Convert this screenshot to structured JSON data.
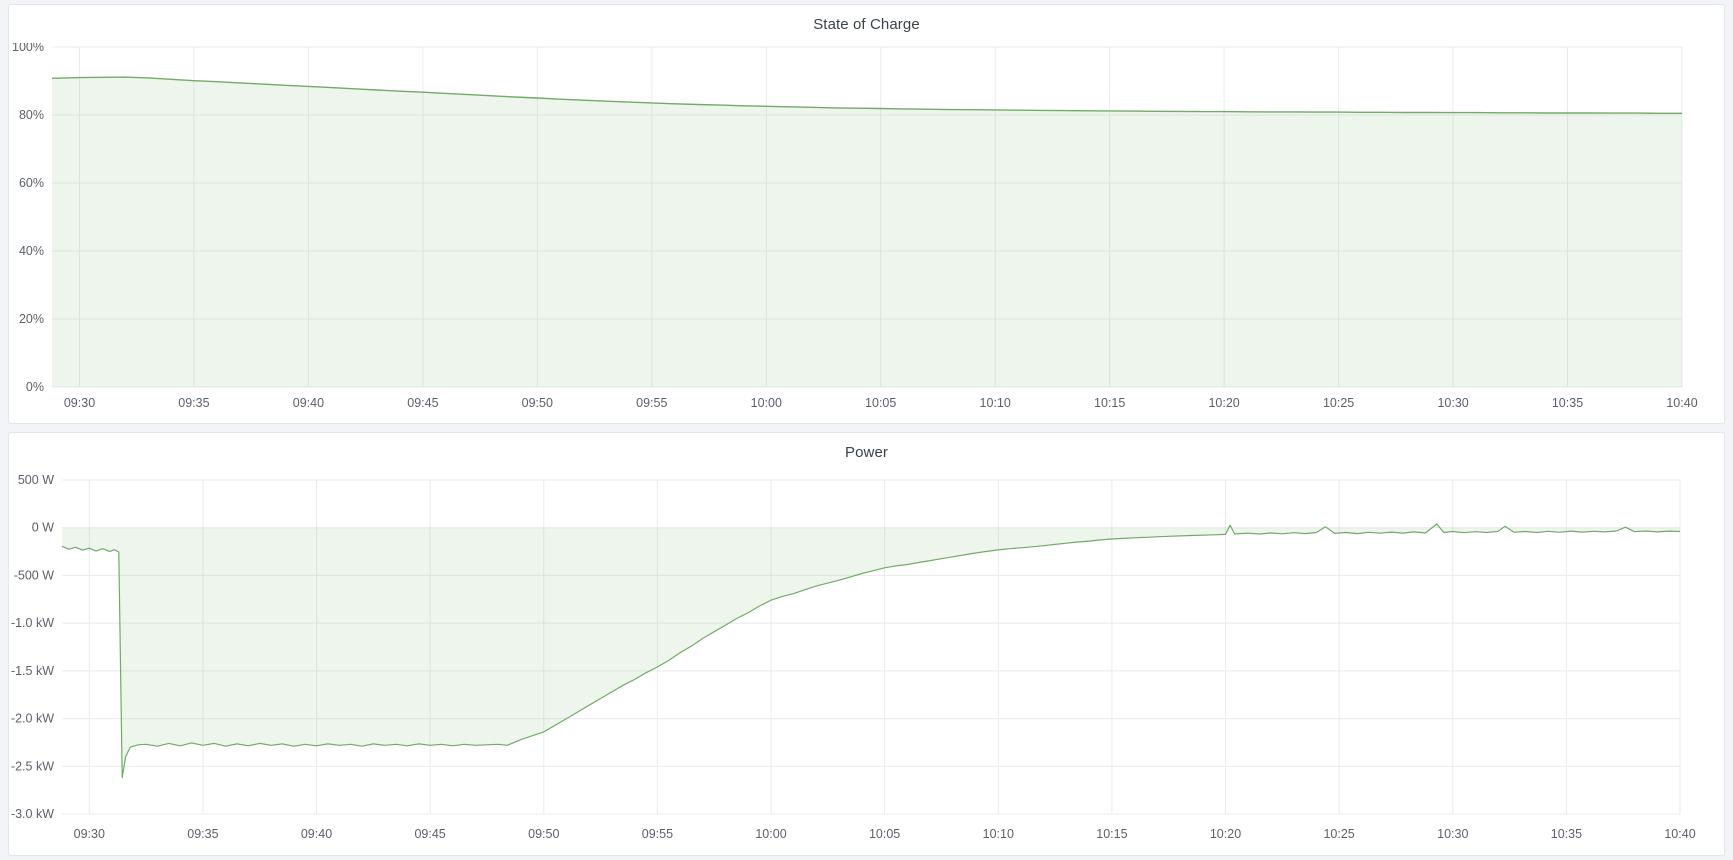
{
  "panels": [
    {
      "title": "State of Charge"
    },
    {
      "title": "Power"
    }
  ],
  "colors": {
    "page_background": "#f3f4f8",
    "panel_background": "#ffffff",
    "panel_border": "#e3e6ec",
    "title_text": "#3a424b",
    "axis_text": "#5b6169",
    "grid": "#e9ebec",
    "series_line_green": "#72ab68",
    "series_fill_green": "rgba(114,171,104,0.12)"
  },
  "chart_data": [
    {
      "type": "area",
      "title": "State of Charge",
      "xlabel": "",
      "ylabel": "",
      "x_unit": "time (HH:MM)",
      "y_unit": "percent",
      "xlim_minutes": [
        -1.2,
        70
      ],
      "ylim": [
        0,
        100
      ],
      "grid": true,
      "legend": "none",
      "fill_to_zero": true,
      "line_color": "#72ab68",
      "fill_color": "rgba(114,171,104,0.12)",
      "line_width": 1.4,
      "noise": 0,
      "x_ticks": [
        {
          "t": 0,
          "label": "09:30"
        },
        {
          "t": 5,
          "label": "09:35"
        },
        {
          "t": 10,
          "label": "09:40"
        },
        {
          "t": 15,
          "label": "09:45"
        },
        {
          "t": 20,
          "label": "09:50"
        },
        {
          "t": 25,
          "label": "09:55"
        },
        {
          "t": 30,
          "label": "10:00"
        },
        {
          "t": 35,
          "label": "10:05"
        },
        {
          "t": 40,
          "label": "10:10"
        },
        {
          "t": 45,
          "label": "10:15"
        },
        {
          "t": 50,
          "label": "10:20"
        },
        {
          "t": 55,
          "label": "10:25"
        },
        {
          "t": 60,
          "label": "10:30"
        },
        {
          "t": 65,
          "label": "10:35"
        },
        {
          "t": 70,
          "label": "10:40"
        }
      ],
      "y_ticks": [
        {
          "value": 100,
          "label": "100%"
        },
        {
          "value": 80,
          "label": "80%"
        },
        {
          "value": 60,
          "label": "60%"
        },
        {
          "value": 40,
          "label": "40%"
        },
        {
          "value": 20,
          "label": "20%"
        },
        {
          "value": 0,
          "label": "0%"
        }
      ],
      "points": [
        [
          -1.2,
          90.8
        ],
        [
          0,
          91.0
        ],
        [
          1,
          91.1
        ],
        [
          2,
          91.15
        ],
        [
          3,
          90.9
        ],
        [
          4,
          90.5
        ],
        [
          5,
          90.1
        ],
        [
          6,
          89.8
        ],
        [
          7,
          89.45
        ],
        [
          8,
          89.1
        ],
        [
          9,
          88.75
        ],
        [
          10,
          88.4
        ],
        [
          11,
          88.05
        ],
        [
          12,
          87.7
        ],
        [
          13,
          87.35
        ],
        [
          14,
          87.0
        ],
        [
          15,
          86.7
        ],
        [
          16,
          86.35
        ],
        [
          17,
          86.0
        ],
        [
          18,
          85.65
        ],
        [
          19,
          85.3
        ],
        [
          20,
          85.0
        ],
        [
          21,
          84.65
        ],
        [
          22,
          84.35
        ],
        [
          23,
          84.05
        ],
        [
          24,
          83.8
        ],
        [
          25,
          83.55
        ],
        [
          26,
          83.3
        ],
        [
          27,
          83.1
        ],
        [
          28,
          82.9
        ],
        [
          29,
          82.7
        ],
        [
          30,
          82.55
        ],
        [
          31,
          82.4
        ],
        [
          32,
          82.25
        ],
        [
          33,
          82.1
        ],
        [
          34,
          82.0
        ],
        [
          35,
          81.9
        ],
        [
          36,
          81.8
        ],
        [
          37,
          81.7
        ],
        [
          38,
          81.6
        ],
        [
          39,
          81.55
        ],
        [
          40,
          81.5
        ],
        [
          41,
          81.4
        ],
        [
          42,
          81.35
        ],
        [
          43,
          81.3
        ],
        [
          44,
          81.25
        ],
        [
          45,
          81.2
        ],
        [
          46,
          81.15
        ],
        [
          47,
          81.1
        ],
        [
          48,
          81.05
        ],
        [
          49,
          81.0
        ],
        [
          50,
          81.0
        ],
        [
          51,
          80.95
        ],
        [
          52,
          80.9
        ],
        [
          53,
          80.9
        ],
        [
          54,
          80.85
        ],
        [
          55,
          80.85
        ],
        [
          56,
          80.8
        ],
        [
          57,
          80.8
        ],
        [
          58,
          80.75
        ],
        [
          59,
          80.75
        ],
        [
          60,
          80.7
        ],
        [
          61,
          80.7
        ],
        [
          62,
          80.65
        ],
        [
          63,
          80.65
        ],
        [
          64,
          80.6
        ],
        [
          65,
          80.6
        ],
        [
          66,
          80.6
        ],
        [
          67,
          80.55
        ],
        [
          68,
          80.55
        ],
        [
          69,
          80.5
        ],
        [
          70,
          80.5
        ]
      ]
    },
    {
      "type": "area",
      "title": "Power",
      "xlabel": "",
      "ylabel": "",
      "x_unit": "time (HH:MM)",
      "y_unit": "watts",
      "xlim_minutes": [
        -1.2,
        70
      ],
      "ylim": [
        -3000,
        500
      ],
      "grid": true,
      "legend": "none",
      "fill_to_zero": true,
      "line_color": "#72ab68",
      "fill_color": "rgba(114,171,104,0.12)",
      "line_width": 1.2,
      "noise": 16,
      "x_ticks": [
        {
          "t": 0,
          "label": "09:30"
        },
        {
          "t": 5,
          "label": "09:35"
        },
        {
          "t": 10,
          "label": "09:40"
        },
        {
          "t": 15,
          "label": "09:45"
        },
        {
          "t": 20,
          "label": "09:50"
        },
        {
          "t": 25,
          "label": "09:55"
        },
        {
          "t": 30,
          "label": "10:00"
        },
        {
          "t": 35,
          "label": "10:05"
        },
        {
          "t": 40,
          "label": "10:10"
        },
        {
          "t": 45,
          "label": "10:15"
        },
        {
          "t": 50,
          "label": "10:20"
        },
        {
          "t": 55,
          "label": "10:25"
        },
        {
          "t": 60,
          "label": "10:30"
        },
        {
          "t": 65,
          "label": "10:35"
        },
        {
          "t": 70,
          "label": "10:40"
        }
      ],
      "y_ticks": [
        {
          "value": 500,
          "label": "500 W"
        },
        {
          "value": 0,
          "label": "0 W"
        },
        {
          "value": -500,
          "label": "-500 W"
        },
        {
          "value": -1000,
          "label": "-1.0 kW"
        },
        {
          "value": -1500,
          "label": "-1.5 kW"
        },
        {
          "value": -2000,
          "label": "-2.0 kW"
        },
        {
          "value": -2500,
          "label": "-2.5 kW"
        },
        {
          "value": -3000,
          "label": "-3.0 kW"
        }
      ],
      "points": [
        [
          -1.2,
          -195
        ],
        [
          -0.9,
          -225
        ],
        [
          -0.6,
          -205
        ],
        [
          -0.3,
          -235
        ],
        [
          0,
          -215
        ],
        [
          0.3,
          -245
        ],
        [
          0.6,
          -220
        ],
        [
          0.9,
          -250
        ],
        [
          1.1,
          -230
        ],
        [
          1.3,
          -255
        ],
        [
          1.45,
          -2620
        ],
        [
          1.6,
          -2400
        ],
        [
          1.8,
          -2300
        ],
        [
          2.5,
          -2270
        ],
        [
          3,
          -2290
        ],
        [
          3.5,
          -2260
        ],
        [
          4,
          -2285
        ],
        [
          4.5,
          -2255
        ],
        [
          5,
          -2280
        ],
        [
          5.5,
          -2260
        ],
        [
          6,
          -2290
        ],
        [
          6.5,
          -2265
        ],
        [
          7,
          -2285
        ],
        [
          7.5,
          -2260
        ],
        [
          8,
          -2280
        ],
        [
          8.5,
          -2265
        ],
        [
          9,
          -2290
        ],
        [
          9.5,
          -2270
        ],
        [
          10,
          -2285
        ],
        [
          10.5,
          -2265
        ],
        [
          11,
          -2280
        ],
        [
          11.5,
          -2270
        ],
        [
          12,
          -2290
        ],
        [
          12.5,
          -2265
        ],
        [
          13,
          -2280
        ],
        [
          13.5,
          -2270
        ],
        [
          14,
          -2285
        ],
        [
          14.5,
          -2265
        ],
        [
          15,
          -2280
        ],
        [
          15.5,
          -2270
        ],
        [
          16,
          -2285
        ],
        [
          16.5,
          -2270
        ],
        [
          17,
          -2280
        ],
        [
          17.5,
          -2275
        ],
        [
          18,
          -2270
        ],
        [
          18.4,
          -2280
        ],
        [
          19,
          -2220
        ],
        [
          19.5,
          -2180
        ],
        [
          20,
          -2140
        ],
        [
          20.5,
          -2070
        ],
        [
          21,
          -2000
        ],
        [
          21.5,
          -1930
        ],
        [
          22,
          -1860
        ],
        [
          22.5,
          -1790
        ],
        [
          23,
          -1720
        ],
        [
          23.5,
          -1650
        ],
        [
          24,
          -1590
        ],
        [
          24.5,
          -1520
        ],
        [
          25,
          -1460
        ],
        [
          25.5,
          -1390
        ],
        [
          26,
          -1310
        ],
        [
          26.5,
          -1240
        ],
        [
          27,
          -1160
        ],
        [
          27.5,
          -1090
        ],
        [
          28,
          -1020
        ],
        [
          28.5,
          -950
        ],
        [
          29,
          -890
        ],
        [
          29.5,
          -820
        ],
        [
          30,
          -760
        ],
        [
          30.5,
          -720
        ],
        [
          31,
          -690
        ],
        [
          31.5,
          -650
        ],
        [
          32,
          -610
        ],
        [
          32.5,
          -580
        ],
        [
          33,
          -550
        ],
        [
          33.5,
          -515
        ],
        [
          34,
          -480
        ],
        [
          34.5,
          -450
        ],
        [
          35,
          -420
        ],
        [
          35.5,
          -400
        ],
        [
          36,
          -385
        ],
        [
          36.5,
          -365
        ],
        [
          37,
          -345
        ],
        [
          37.5,
          -325
        ],
        [
          38,
          -305
        ],
        [
          38.5,
          -285
        ],
        [
          39,
          -265
        ],
        [
          39.5,
          -248
        ],
        [
          40,
          -232
        ],
        [
          40.5,
          -220
        ],
        [
          41,
          -210
        ],
        [
          41.5,
          -200
        ],
        [
          42,
          -188
        ],
        [
          42.5,
          -175
        ],
        [
          43,
          -162
        ],
        [
          43.5,
          -150
        ],
        [
          44,
          -140
        ],
        [
          44.5,
          -128
        ],
        [
          45,
          -118
        ],
        [
          45.5,
          -112
        ],
        [
          46,
          -106
        ],
        [
          46.5,
          -100
        ],
        [
          47,
          -95
        ],
        [
          47.5,
          -90
        ],
        [
          48,
          -86
        ],
        [
          48.5,
          -82
        ],
        [
          49,
          -78
        ],
        [
          49.5,
          -74
        ],
        [
          50,
          -70
        ],
        [
          50.2,
          25
        ],
        [
          50.4,
          -65
        ],
        [
          51,
          -58
        ],
        [
          51.5,
          -66
        ],
        [
          52,
          -55
        ],
        [
          52.5,
          -64
        ],
        [
          53,
          -52
        ],
        [
          53.5,
          -62
        ],
        [
          54,
          -50
        ],
        [
          54.4,
          10
        ],
        [
          54.8,
          -60
        ],
        [
          55.3,
          -50
        ],
        [
          55.8,
          -62
        ],
        [
          56.3,
          -48
        ],
        [
          56.8,
          -58
        ],
        [
          57.3,
          -46
        ],
        [
          57.8,
          -56
        ],
        [
          58.3,
          -44
        ],
        [
          58.8,
          -55
        ],
        [
          59.3,
          40
        ],
        [
          59.6,
          -50
        ],
        [
          60,
          -40
        ],
        [
          60.5,
          -52
        ],
        [
          61,
          -42
        ],
        [
          61.5,
          -50
        ],
        [
          62,
          -38
        ],
        [
          62.3,
          15
        ],
        [
          62.7,
          -48
        ],
        [
          63.2,
          -40
        ],
        [
          63.7,
          -50
        ],
        [
          64.2,
          -38
        ],
        [
          64.7,
          -48
        ],
        [
          65.2,
          -36
        ],
        [
          65.7,
          -46
        ],
        [
          66.2,
          -38
        ],
        [
          66.7,
          -44
        ],
        [
          67.2,
          -34
        ],
        [
          67.6,
          5
        ],
        [
          68,
          -42
        ],
        [
          68.5,
          -34
        ],
        [
          69,
          -44
        ],
        [
          69.5,
          -36
        ],
        [
          70,
          -40
        ]
      ]
    }
  ]
}
